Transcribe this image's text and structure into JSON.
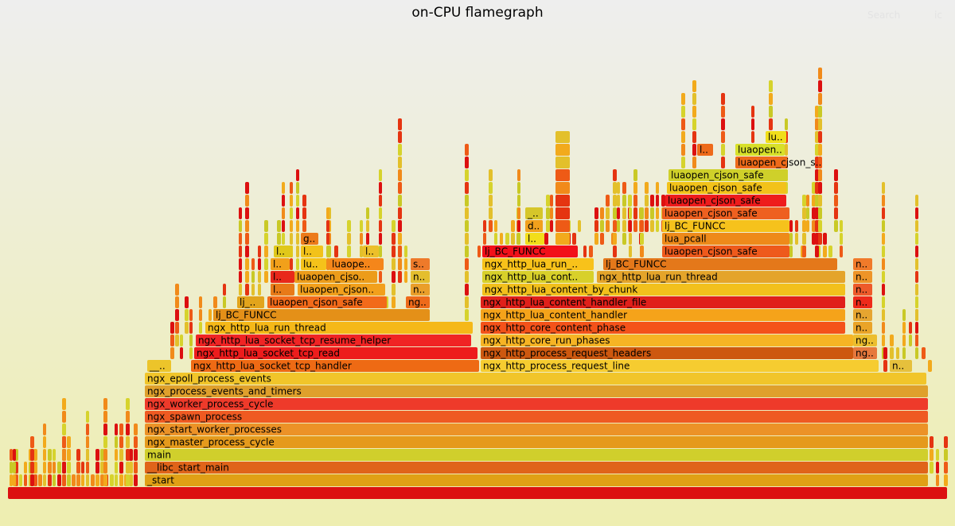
{
  "title": "on-CPU flamegraph",
  "controls": {
    "search": "Search",
    "ic": "ic"
  },
  "chart_data": {
    "type": "flamegraph",
    "title": "on-CPU flamegraph",
    "total_width": 1180,
    "palette": [
      "#dc1010",
      "#e53411",
      "#ee5a16",
      "#f18a1a",
      "#f2aa1c",
      "#e3c02b",
      "#d6d32c",
      "#c9c926"
    ],
    "frames": [
      {
        "name": "",
        "depth": 0,
        "start": 0,
        "width": 1180,
        "color": "#dc1010"
      },
      {
        "name": "_start",
        "depth": 1,
        "start": 172,
        "width": 984,
        "color": "#e0a015"
      },
      {
        "name": "__libc_start_main",
        "depth": 2,
        "start": 172,
        "width": 984,
        "color": "#e0641a"
      },
      {
        "name": "main",
        "depth": 3,
        "start": 172,
        "width": 984,
        "color": "#d0cf2c"
      },
      {
        "name": "ngx_master_process_cycle",
        "depth": 4,
        "start": 172,
        "width": 984,
        "color": "#e59a1c"
      },
      {
        "name": "ngx_start_worker_processes",
        "depth": 5,
        "start": 172,
        "width": 984,
        "color": "#ec9227"
      },
      {
        "name": "ngx_spawn_process",
        "depth": 6,
        "start": 172,
        "width": 984,
        "color": "#ef5a22"
      },
      {
        "name": "ngx_worker_process_cycle",
        "depth": 7,
        "start": 172,
        "width": 984,
        "color": "#ee3a2a"
      },
      {
        "name": "ngx_process_events_and_timers",
        "depth": 8,
        "start": 172,
        "width": 984,
        "color": "#dfa02c"
      },
      {
        "name": "ngx_epoll_process_events",
        "depth": 9,
        "start": 172,
        "width": 982,
        "color": "#f1c52a"
      },
      {
        "name": "__..",
        "depth": 10,
        "start": 175,
        "width": 30,
        "color": "#ecc42a"
      },
      {
        "name": "ngx_http_lua_socket_tcp_handler",
        "depth": 10,
        "start": 230,
        "width": 362,
        "color": "#ee6a14"
      },
      {
        "name": "ngx_http_process_request_line",
        "depth": 10,
        "start": 594,
        "width": 500,
        "color": "#f6cc30"
      },
      {
        "name": "n..",
        "depth": 10,
        "start": 1108,
        "width": 28,
        "color": "#e6c03c"
      },
      {
        "name": "ngx_http_lua_socket_tcp_read",
        "depth": 11,
        "start": 234,
        "width": 356,
        "color": "#ed1c1c"
      },
      {
        "name": "ngx_http_process_request_headers",
        "depth": 11,
        "start": 594,
        "width": 468,
        "color": "#cd580f"
      },
      {
        "name": "ng..",
        "depth": 11,
        "start": 1062,
        "width": 30,
        "color": "#e6783c"
      },
      {
        "name": "ngx_http_lua_socket_tcp_resume_helper",
        "depth": 12,
        "start": 236,
        "width": 346,
        "color": "#f02424"
      },
      {
        "name": "ngx_http_core_run_phases",
        "depth": 12,
        "start": 594,
        "width": 468,
        "color": "#f6b424"
      },
      {
        "name": "ng..",
        "depth": 12,
        "start": 1062,
        "width": 30,
        "color": "#ecbe2e"
      },
      {
        "name": "ngx_http_lua_run_thread",
        "depth": 13,
        "start": 248,
        "width": 336,
        "color": "#f5b818"
      },
      {
        "name": "ngx_http_core_content_phase",
        "depth": 13,
        "start": 594,
        "width": 458,
        "color": "#f4521a"
      },
      {
        "name": "n..",
        "depth": 13,
        "start": 1062,
        "width": 24,
        "color": "#eaa428"
      },
      {
        "name": "lj_BC_FUNCC",
        "depth": 14,
        "start": 258,
        "width": 272,
        "color": "#e49018"
      },
      {
        "name": "ngx_http_lua_content_handler",
        "depth": 14,
        "start": 594,
        "width": 458,
        "color": "#f5a31a"
      },
      {
        "name": "n..",
        "depth": 14,
        "start": 1062,
        "width": 24,
        "color": "#e6a530"
      },
      {
        "name": "lj_..",
        "depth": 15,
        "start": 288,
        "width": 34,
        "color": "#e2a41c"
      },
      {
        "name": "luaopen_cjson_safe",
        "depth": 15,
        "start": 326,
        "width": 150,
        "color": "#f26a1a"
      },
      {
        "name": "ng..",
        "depth": 15,
        "start": 500,
        "width": 30,
        "color": "#ee6a1a"
      },
      {
        "name": "ngx_http_lua_content_handler_file",
        "depth": 15,
        "start": 594,
        "width": 458,
        "color": "#e0201a"
      },
      {
        "name": "n..",
        "depth": 15,
        "start": 1062,
        "width": 24,
        "color": "#ee2a1a"
      },
      {
        "name": "l..",
        "depth": 16,
        "start": 330,
        "width": 30,
        "color": "#e87a18"
      },
      {
        "name": "luaopen_cjson..",
        "depth": 16,
        "start": 364,
        "width": 110,
        "color": "#f2a01c"
      },
      {
        "name": "n..",
        "depth": 16,
        "start": 506,
        "width": 24,
        "color": "#ea9e2a"
      },
      {
        "name": "ngx_http_lua_content_by_chunk",
        "depth": 16,
        "start": 596,
        "width": 456,
        "color": "#f2c01c"
      },
      {
        "name": "n..",
        "depth": 16,
        "start": 1062,
        "width": 24,
        "color": "#ee5a2a"
      },
      {
        "name": "l..",
        "depth": 17,
        "start": 330,
        "width": 30,
        "color": "#e8281a"
      },
      {
        "name": "luaopen_cjso..",
        "depth": 17,
        "start": 360,
        "width": 104,
        "color": "#ec9c1a"
      },
      {
        "name": "n..",
        "depth": 17,
        "start": 506,
        "width": 24,
        "color": "#e4be2e"
      },
      {
        "name": "ngx_http_lua_cont..",
        "depth": 17,
        "start": 596,
        "width": 140,
        "color": "#d8d02a"
      },
      {
        "name": "ngx_http_lua_run_thread",
        "depth": 17,
        "start": 740,
        "width": 312,
        "color": "#e4a42a"
      },
      {
        "name": "n..",
        "depth": 17,
        "start": 1062,
        "width": 24,
        "color": "#ee9428"
      },
      {
        "name": "l..",
        "depth": 18,
        "start": 330,
        "width": 24,
        "color": "#f2a01a"
      },
      {
        "name": "lu..",
        "depth": 18,
        "start": 368,
        "width": 32,
        "color": "#f5c21a"
      },
      {
        "name": "luaope..",
        "depth": 18,
        "start": 404,
        "width": 68,
        "color": "#f5861a"
      },
      {
        "name": "s..",
        "depth": 18,
        "start": 506,
        "width": 24,
        "color": "#ee7a2a"
      },
      {
        "name": "ngx_http_lua_run_..",
        "depth": 18,
        "start": 596,
        "width": 140,
        "color": "#f8c21a"
      },
      {
        "name": "lj_BC_FUNCC",
        "depth": 18,
        "start": 748,
        "width": 294,
        "color": "#e4781a"
      },
      {
        "name": "n..",
        "depth": 18,
        "start": 1062,
        "width": 24,
        "color": "#f07a2a"
      },
      {
        "name": "l..",
        "depth": 19,
        "start": 334,
        "width": 24,
        "color": "#e0c81a"
      },
      {
        "name": "l..",
        "depth": 19,
        "start": 368,
        "width": 28,
        "color": "#f2c21a"
      },
      {
        "name": "l..",
        "depth": 19,
        "start": 446,
        "width": 20,
        "color": "#ecc02a"
      },
      {
        "name": "lj_BC_FUNCC",
        "depth": 19,
        "start": 596,
        "width": 120,
        "color": "#f2101a"
      },
      {
        "name": "luaopen_cjson_safe",
        "depth": 19,
        "start": 822,
        "width": 160,
        "color": "#ee5a1c"
      },
      {
        "name": "g..",
        "depth": 20,
        "start": 368,
        "width": 22,
        "color": "#ec7a1a"
      },
      {
        "name": "l..",
        "depth": 20,
        "start": 650,
        "width": 24,
        "color": "#f2de1a"
      },
      {
        "name": "lua_pcall",
        "depth": 20,
        "start": 822,
        "width": 160,
        "color": "#ee8a1a"
      },
      {
        "name": "d..",
        "depth": 21,
        "start": 650,
        "width": 22,
        "color": "#f2a01c"
      },
      {
        "name": "lj_BC_FUNCC",
        "depth": 21,
        "start": 822,
        "width": 160,
        "color": "#f6c21c"
      },
      {
        "name": "_..",
        "depth": 22,
        "start": 650,
        "width": 22,
        "color": "#d6c62a"
      },
      {
        "name": "luaopen_cjson_safe",
        "depth": 22,
        "start": 822,
        "width": 160,
        "color": "#ee6020"
      },
      {
        "name": "luaopen_cjson_safe",
        "depth": 23,
        "start": 826,
        "width": 152,
        "color": "#ee1c1c"
      },
      {
        "name": "luaopen_cjson_safe",
        "depth": 24,
        "start": 828,
        "width": 150,
        "color": "#f2c21a"
      },
      {
        "name": "luaopen_cjson_safe",
        "depth": 25,
        "start": 830,
        "width": 150,
        "color": "#cfd02a"
      },
      {
        "name": "luaopen_cjson_s..",
        "depth": 26,
        "start": 914,
        "width": 66,
        "color": "#ee6a1a"
      },
      {
        "name": "l..",
        "depth": 27,
        "start": 866,
        "width": 20,
        "color": "#ee6a1a"
      },
      {
        "name": "luaopen..",
        "depth": 27,
        "start": 914,
        "width": 62,
        "color": "#d8e02a"
      },
      {
        "name": "lu..",
        "depth": 28,
        "start": 952,
        "width": 26,
        "color": "#f0de1a"
      }
    ]
  }
}
